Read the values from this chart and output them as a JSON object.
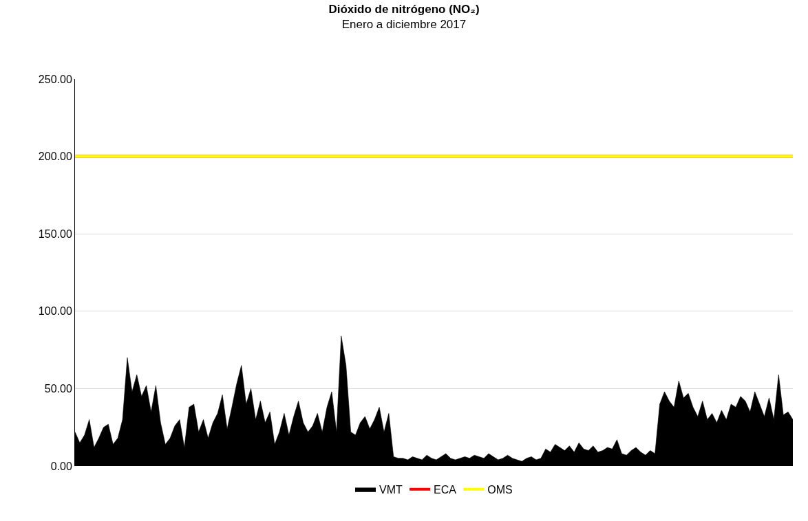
{
  "chart_data": {
    "type": "area",
    "title": "Dióxido de nitrógeno (NO₂)",
    "subtitle": "Enero a diciembre 2017",
    "categories": [
      null,
      null,
      null,
      null,
      null,
      null,
      null,
      null,
      null,
      null,
      null,
      null,
      null,
      null,
      null,
      null,
      null,
      null,
      null,
      null,
      null,
      null,
      null,
      null,
      null,
      null,
      null,
      null,
      null,
      null,
      null,
      null,
      null,
      null,
      null,
      null,
      null,
      null,
      null,
      null,
      null,
      null,
      null,
      null,
      null,
      null,
      null,
      null,
      null,
      null,
      null,
      null,
      null,
      null,
      null,
      null,
      null,
      null,
      null,
      null,
      null,
      null,
      null,
      null,
      null,
      null,
      null,
      null,
      null,
      null,
      null,
      null,
      null,
      null,
      null,
      null,
      null,
      null,
      null,
      null,
      null,
      null,
      null,
      null,
      null,
      null,
      null,
      null,
      null,
      null,
      null,
      null,
      null,
      null,
      null,
      null,
      null,
      null,
      null,
      null,
      null,
      null,
      null,
      null,
      null,
      null,
      null,
      null,
      null,
      null,
      null,
      null,
      null,
      null,
      null,
      null,
      null,
      null,
      null,
      null,
      null,
      null,
      null,
      null,
      null,
      null,
      null,
      null,
      null,
      null,
      null,
      null,
      null,
      null,
      null,
      null,
      null,
      null,
      null,
      null,
      null,
      null,
      null,
      null,
      null,
      null,
      null,
      null,
      null,
      null,
      null,
      null
    ],
    "series": [
      {
        "name": "VMT",
        "color": "#000000",
        "values": [
          22,
          15,
          20,
          30,
          12,
          18,
          25,
          27,
          14,
          18,
          30,
          70,
          48,
          59,
          45,
          52,
          35,
          52,
          28,
          14,
          18,
          26,
          30,
          12,
          38,
          40,
          22,
          30,
          18,
          28,
          34,
          46,
          24,
          38,
          53,
          65,
          40,
          50,
          30,
          42,
          28,
          35,
          14,
          22,
          34,
          20,
          32,
          42,
          28,
          22,
          26,
          34,
          22,
          38,
          48,
          22,
          84,
          65,
          22,
          20,
          28,
          32,
          24,
          30,
          38,
          22,
          34,
          6,
          5,
          5,
          4,
          6,
          5,
          4,
          7,
          5,
          4,
          6,
          8,
          5,
          4,
          5,
          6,
          5,
          7,
          6,
          5,
          8,
          6,
          4,
          5,
          7,
          5,
          4,
          3,
          5,
          6,
          4,
          5,
          11,
          9,
          14,
          12,
          10,
          13,
          9,
          15,
          11,
          10,
          13,
          9,
          10,
          12,
          11,
          17,
          8,
          7,
          10,
          12,
          9,
          7,
          10,
          8,
          40,
          48,
          42,
          38,
          55,
          44,
          47,
          38,
          32,
          42,
          30,
          34,
          28,
          36,
          30,
          40,
          38,
          45,
          42,
          35,
          48,
          40,
          32,
          44,
          30,
          59,
          33,
          35,
          30
        ]
      }
    ],
    "ref_lines": [
      {
        "axis": "y",
        "value": 200,
        "label": "ECA",
        "color": "#ff0000"
      },
      {
        "axis": "y",
        "value": 200,
        "label": "OMS",
        "color": "#ffff00"
      }
    ],
    "ylim": [
      0,
      250
    ],
    "yticks": [
      {
        "value": 0,
        "label": "0.00"
      },
      {
        "value": 50,
        "label": "50.00"
      },
      {
        "value": 100,
        "label": "100.00"
      },
      {
        "value": 150,
        "label": "150.00"
      },
      {
        "value": 200,
        "label": "200.00"
      },
      {
        "value": 250,
        "label": "250.00"
      }
    ],
    "grid": "y",
    "legend": "bottom",
    "tick_labels": "y"
  }
}
